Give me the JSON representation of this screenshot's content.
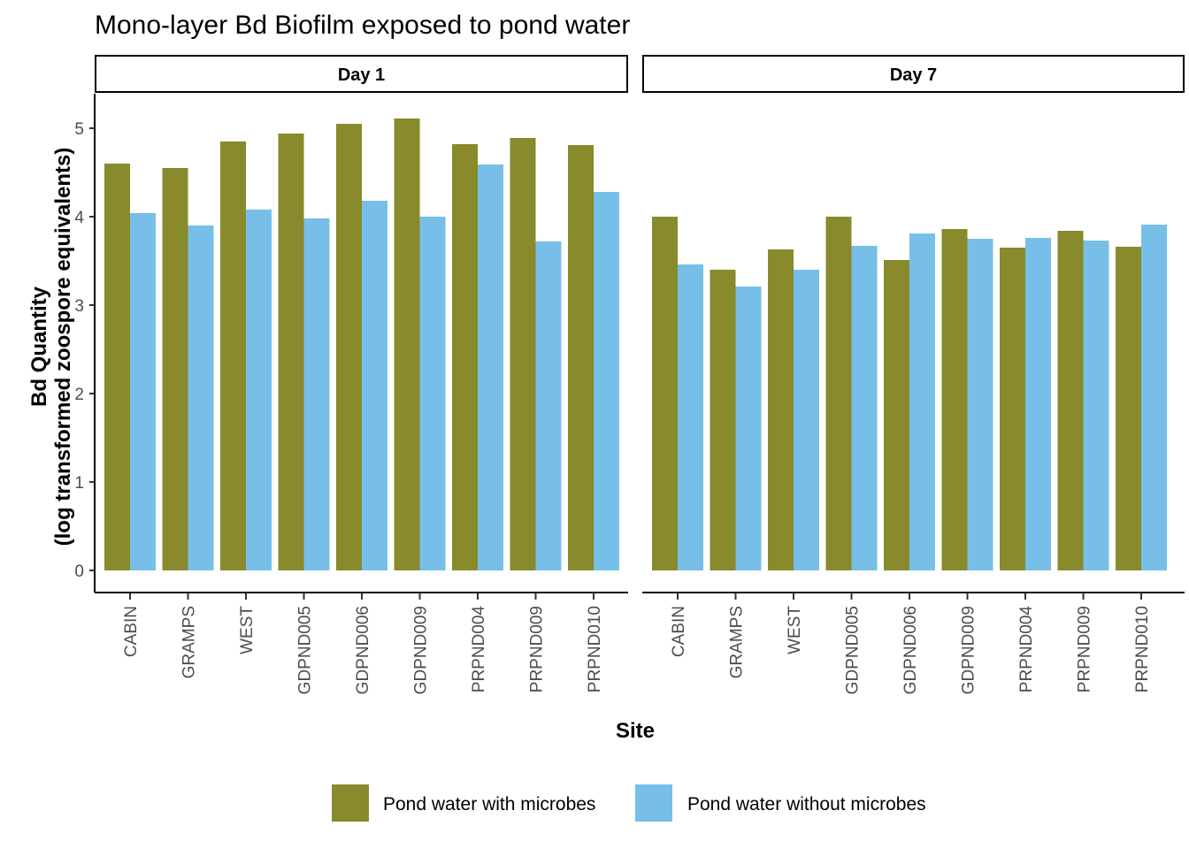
{
  "chart_data": {
    "type": "bar",
    "title": "Mono-layer Bd Biofilm exposed to pond water",
    "xlabel": "Site",
    "ylabel_line1": "Bd Quantity",
    "ylabel_line2": "(log transformed zoospore equivalents)",
    "ylim": [
      0,
      5.35
    ],
    "yticks": [
      "0",
      "1",
      "2",
      "3",
      "4",
      "5"
    ],
    "grid": false,
    "legend_position": "bottom",
    "categories": [
      "CABIN",
      "GRAMPS",
      "WEST",
      "GDPND005",
      "GDPND006",
      "GDPND009",
      "PRPND004",
      "PRPND009",
      "PRPND010"
    ],
    "series_colors": [
      "#888A2B",
      "#77BFE8"
    ],
    "legend": [
      "Pond water with microbes",
      "Pond water without microbes"
    ],
    "panels": [
      {
        "label": "Day 1",
        "series": [
          {
            "name": "Pond water with microbes",
            "values": [
              4.6,
              4.55,
              4.85,
              4.94,
              5.05,
              5.11,
              4.82,
              4.89,
              4.81
            ]
          },
          {
            "name": "Pond water without microbes",
            "values": [
              4.04,
              3.9,
              4.08,
              3.98,
              4.18,
              4.0,
              4.59,
              3.72,
              4.28
            ]
          }
        ]
      },
      {
        "label": "Day 7",
        "series": [
          {
            "name": "Pond water with microbes",
            "values": [
              4.0,
              3.4,
              3.63,
              4.0,
              3.51,
              3.86,
              3.65,
              3.84,
              3.66
            ]
          },
          {
            "name": "Pond water without microbes",
            "values": [
              3.46,
              3.21,
              3.4,
              3.67,
              3.81,
              3.75,
              3.76,
              3.73,
              3.91
            ]
          }
        ]
      }
    ]
  }
}
